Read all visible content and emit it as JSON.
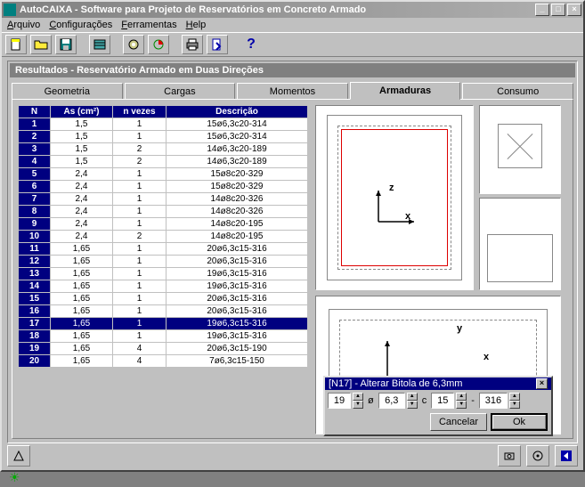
{
  "window": {
    "title": "AutoCAIXA - Software para Projeto de Reservatórios em Concreto Armado"
  },
  "menu": {
    "arquivo": "Arquivo",
    "config": "Configurações",
    "ferramentas": "Ferramentas",
    "help": "Help"
  },
  "panel_title": "Resultados - Reservatório Armado em Duas Direções",
  "tabs": {
    "geometria": "Geometria",
    "cargas": "Cargas",
    "momentos": "Momentos",
    "armaduras": "Armaduras",
    "consumo": "Consumo"
  },
  "table": {
    "headers": {
      "n": "N",
      "as": "As (cm²)",
      "nv": "n vezes",
      "desc": "Descrição"
    },
    "rows": [
      {
        "n": "1",
        "as": "1,5",
        "nv": "1",
        "desc": "15ø6,3c20-314"
      },
      {
        "n": "2",
        "as": "1,5",
        "nv": "1",
        "desc": "15ø6,3c20-314"
      },
      {
        "n": "3",
        "as": "1,5",
        "nv": "2",
        "desc": "14ø6,3c20-189"
      },
      {
        "n": "4",
        "as": "1,5",
        "nv": "2",
        "desc": "14ø6,3c20-189"
      },
      {
        "n": "5",
        "as": "2,4",
        "nv": "1",
        "desc": "15ø8c20-329"
      },
      {
        "n": "6",
        "as": "2,4",
        "nv": "1",
        "desc": "15ø8c20-329"
      },
      {
        "n": "7",
        "as": "2,4",
        "nv": "1",
        "desc": "14ø8c20-326"
      },
      {
        "n": "8",
        "as": "2,4",
        "nv": "1",
        "desc": "14ø8c20-326"
      },
      {
        "n": "9",
        "as": "2,4",
        "nv": "1",
        "desc": "14ø8c20-195"
      },
      {
        "n": "10",
        "as": "2,4",
        "nv": "2",
        "desc": "14ø8c20-195"
      },
      {
        "n": "11",
        "as": "1,65",
        "nv": "1",
        "desc": "20ø6,3c15-316"
      },
      {
        "n": "12",
        "as": "1,65",
        "nv": "1",
        "desc": "20ø6,3c15-316"
      },
      {
        "n": "13",
        "as": "1,65",
        "nv": "1",
        "desc": "19ø6,3c15-316"
      },
      {
        "n": "14",
        "as": "1,65",
        "nv": "1",
        "desc": "19ø6,3c15-316"
      },
      {
        "n": "15",
        "as": "1,65",
        "nv": "1",
        "desc": "20ø6,3c15-316"
      },
      {
        "n": "16",
        "as": "1,65",
        "nv": "1",
        "desc": "20ø6,3c15-316"
      },
      {
        "n": "17",
        "as": "1,65",
        "nv": "1",
        "desc": "19ø6,3c15-316",
        "sel": true
      },
      {
        "n": "18",
        "as": "1,65",
        "nv": "1",
        "desc": "19ø6,3c15-316"
      },
      {
        "n": "19",
        "as": "1,65",
        "nv": "4",
        "desc": "20ø6,3c15-190"
      },
      {
        "n": "20",
        "as": "1,65",
        "nv": "4",
        "desc": "7ø6,3c15-150"
      }
    ]
  },
  "popup": {
    "title": "[N17] - Alterar Bitola de 6,3mm",
    "qty": "19",
    "sym": "ø",
    "diam": "6,3",
    "c": "c",
    "spacing": "15",
    "dash": "-",
    "len": "316",
    "cancel": "Cancelar",
    "ok": "Ok"
  },
  "axes": {
    "x": "x",
    "y": "y",
    "z": "z"
  },
  "colors": {
    "titlebar_inactive": "#808080",
    "highlight": "#000080",
    "red": "#d00000"
  }
}
